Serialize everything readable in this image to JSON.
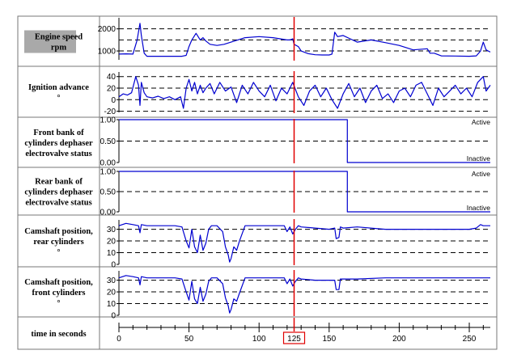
{
  "cursor": {
    "time": 125,
    "color": "#e00000"
  },
  "series_color": "#0000d0",
  "chart_data": [
    {
      "type": "line",
      "label_lines": [
        "Engine speed",
        "rpm"
      ],
      "label_highlight": true,
      "ylim": [
        600,
        2500
      ],
      "yticks": [
        1000,
        2000
      ],
      "ytick_labels": [
        "1000",
        "2000"
      ],
      "dashed": [
        1000,
        1500,
        2000
      ],
      "series": [
        {
          "x": [
            0,
            5,
            10,
            13,
            15,
            16,
            18,
            20,
            25,
            30,
            40,
            45,
            48,
            50,
            52,
            55,
            58,
            60,
            62,
            65,
            70,
            75,
            80,
            90,
            100,
            110,
            120,
            122,
            124,
            125,
            128,
            130,
            135,
            140,
            145,
            150,
            152,
            154,
            156,
            160,
            165,
            170,
            180,
            190,
            200,
            210,
            220,
            222,
            225,
            230,
            240,
            250,
            255,
            258,
            260,
            262,
            265
          ],
          "y": [
            860,
            870,
            860,
            1500,
            2250,
            1700,
            900,
            760,
            760,
            760,
            760,
            760,
            800,
            1200,
            1500,
            1800,
            1500,
            1600,
            1450,
            1300,
            1250,
            1300,
            1400,
            1600,
            1650,
            1600,
            1500,
            1500,
            1550,
            1300,
            1200,
            1000,
            880,
            830,
            820,
            820,
            860,
            1850,
            1650,
            1700,
            1550,
            1400,
            1500,
            1380,
            1250,
            1050,
            1100,
            900,
            900,
            780,
            770,
            760,
            780,
            1000,
            1400,
            1050,
            950
          ]
        }
      ]
    },
    {
      "type": "line",
      "label_lines": [
        "Ignition advance",
        "°"
      ],
      "ylim": [
        -22,
        48
      ],
      "yticks": [
        -20,
        0,
        20,
        40
      ],
      "ytick_labels": [
        "-20",
        "0",
        "20",
        "40"
      ],
      "dashed": [
        -20,
        0,
        20,
        40
      ],
      "series": [
        {
          "x": [
            0,
            3,
            6,
            9,
            12,
            14,
            15,
            16,
            18,
            20,
            24,
            28,
            32,
            36,
            40,
            44,
            46,
            48,
            50,
            52,
            54,
            56,
            58,
            60,
            62,
            65,
            68,
            72,
            76,
            80,
            84,
            88,
            92,
            96,
            100,
            104,
            108,
            112,
            116,
            120,
            124,
            128,
            132,
            136,
            140,
            144,
            148,
            152,
            156,
            160,
            164,
            168,
            172,
            176,
            180,
            184,
            188,
            192,
            196,
            200,
            204,
            208,
            212,
            216,
            220,
            224,
            228,
            232,
            236,
            240,
            244,
            248,
            252,
            256,
            260,
            262,
            265
          ],
          "y": [
            5,
            10,
            8,
            12,
            40,
            25,
            -10,
            30,
            12,
            5,
            3,
            6,
            2,
            5,
            0,
            5,
            -15,
            20,
            35,
            15,
            30,
            10,
            25,
            12,
            20,
            28,
            10,
            30,
            15,
            22,
            -5,
            25,
            10,
            30,
            15,
            5,
            25,
            -2,
            20,
            10,
            30,
            5,
            -10,
            15,
            25,
            5,
            20,
            0,
            -15,
            10,
            28,
            5,
            20,
            -5,
            15,
            25,
            2,
            10,
            -5,
            15,
            20,
            5,
            25,
            30,
            10,
            -10,
            20,
            5,
            15,
            25,
            10,
            20,
            5,
            30,
            40,
            15,
            25
          ]
        }
      ]
    },
    {
      "type": "line",
      "label_lines": [
        "Front bank of",
        "cylinders dephaser",
        "electrovalve status"
      ],
      "ylim": [
        0,
        1
      ],
      "yticks": [
        0,
        0.5,
        1
      ],
      "ytick_labels": [
        "0.00",
        "0.50",
        "1.00"
      ],
      "dashed": [
        0.5
      ],
      "state_high": "Active",
      "state_low": "Inactive",
      "series": [
        {
          "x": [
            0,
            163,
            163,
            265
          ],
          "y": [
            1,
            1,
            0,
            0
          ]
        }
      ]
    },
    {
      "type": "line",
      "label_lines": [
        "Rear bank of",
        "cylinders dephaser",
        "electrovalve status"
      ],
      "ylim": [
        0,
        1
      ],
      "yticks": [
        0,
        0.5,
        1
      ],
      "ytick_labels": [
        "0.00",
        "0.50",
        "1.00"
      ],
      "dashed": [
        0.5
      ],
      "state_high": "Active",
      "state_low": "Inactive",
      "series": [
        {
          "x": [
            0,
            163,
            163,
            265
          ],
          "y": [
            1,
            1,
            0,
            0
          ]
        }
      ]
    },
    {
      "type": "line",
      "label_lines": [
        "Camshaft position,",
        "rear cylinders",
        "°"
      ],
      "ylim": [
        0,
        38
      ],
      "yticks": [
        0,
        10,
        20,
        30
      ],
      "ytick_labels": [
        "0",
        "10",
        "20",
        "30"
      ],
      "dashed": [
        10,
        20,
        30
      ],
      "series": [
        {
          "x": [
            0,
            5,
            10,
            14,
            15,
            16,
            20,
            30,
            40,
            45,
            48,
            50,
            52,
            54,
            56,
            58,
            60,
            62,
            64,
            66,
            70,
            74,
            76,
            78,
            79,
            80,
            82,
            84,
            86,
            90,
            100,
            110,
            118,
            120,
            122,
            124,
            126,
            128,
            130,
            140,
            150,
            154,
            155,
            157,
            158,
            160,
            170,
            190,
            200,
            220,
            240,
            250,
            255,
            258,
            260,
            265
          ],
          "y": [
            33,
            35,
            34,
            33,
            27,
            34,
            33,
            33,
            33,
            32,
            20,
            14,
            30,
            15,
            10,
            25,
            12,
            18,
            30,
            33,
            33,
            28,
            15,
            8,
            2,
            5,
            15,
            12,
            20,
            33,
            33,
            33,
            33,
            28,
            32,
            26,
            30,
            33,
            32,
            31,
            30,
            31,
            22,
            23,
            32,
            31,
            32,
            30,
            30,
            30,
            30,
            30,
            31,
            34,
            33,
            33
          ]
        }
      ]
    },
    {
      "type": "line",
      "label_lines": [
        "Camshaft position,",
        "front cylinders",
        "°"
      ],
      "ylim": [
        0,
        38
      ],
      "yticks": [
        0,
        10,
        20,
        30
      ],
      "ytick_labels": [
        "0",
        "10",
        "20",
        "30"
      ],
      "dashed": [
        10,
        20,
        30
      ],
      "series": [
        {
          "x": [
            0,
            5,
            10,
            14,
            15,
            16,
            20,
            30,
            40,
            45,
            48,
            50,
            52,
            54,
            56,
            58,
            60,
            62,
            64,
            66,
            70,
            74,
            76,
            78,
            79,
            80,
            82,
            84,
            86,
            90,
            100,
            110,
            118,
            120,
            122,
            124,
            126,
            128,
            130,
            140,
            150,
            154,
            155,
            157,
            158,
            160,
            170,
            190,
            200,
            220,
            240,
            250,
            255,
            258,
            260,
            265
          ],
          "y": [
            32,
            34,
            33,
            32,
            26,
            33,
            32,
            32,
            32,
            31,
            20,
            13,
            29,
            14,
            10,
            24,
            12,
            18,
            29,
            32,
            32,
            27,
            15,
            8,
            2,
            5,
            14,
            12,
            19,
            32,
            32,
            32,
            32,
            27,
            31,
            25,
            29,
            32,
            31,
            30,
            30,
            30,
            22,
            22,
            31,
            31,
            31,
            32,
            32,
            32,
            32,
            32,
            32,
            32,
            32,
            32
          ]
        }
      ]
    }
  ],
  "time_axis": {
    "label": "time in seconds",
    "xlim": [
      0,
      265
    ],
    "ticks": [
      0,
      50,
      100,
      125,
      150,
      200,
      250
    ],
    "tick_labels": [
      "0",
      "50",
      "100",
      "125",
      "150",
      "200",
      "250"
    ],
    "highlight_tick": 125
  }
}
